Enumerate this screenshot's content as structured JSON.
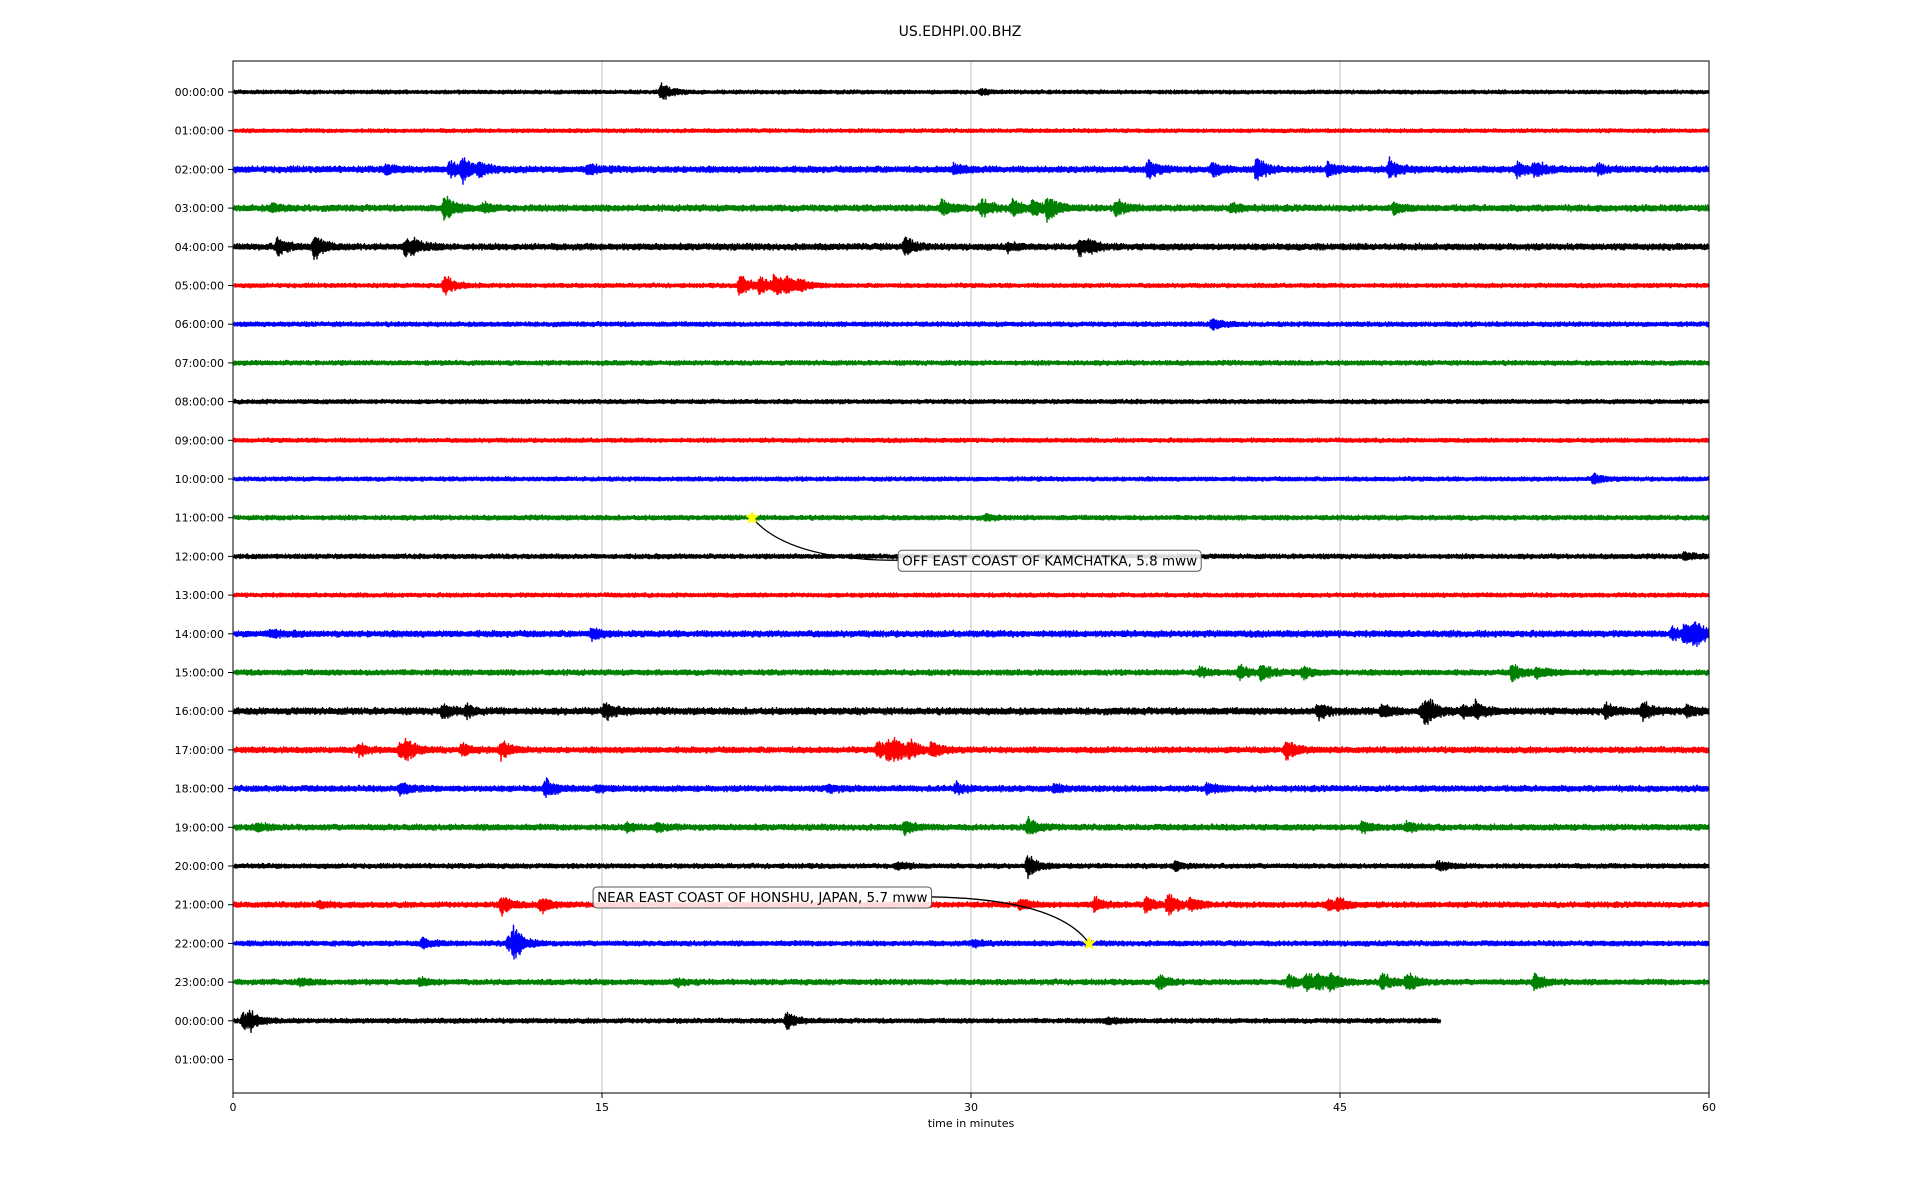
{
  "chart_data": {
    "type": "line",
    "title": "US.EDHPI.00.BHZ",
    "xlabel": "time in minutes",
    "xlim": [
      0,
      60
    ],
    "x_ticks": [
      "0",
      "15",
      "30",
      "45",
      "60"
    ],
    "grid": "vertical",
    "row_labels": [
      "00:00:00",
      "01:00:00",
      "02:00:00",
      "03:00:00",
      "04:00:00",
      "05:00:00",
      "06:00:00",
      "07:00:00",
      "08:00:00",
      "09:00:00",
      "10:00:00",
      "11:00:00",
      "12:00:00",
      "13:00:00",
      "14:00:00",
      "15:00:00",
      "16:00:00",
      "17:00:00",
      "18:00:00",
      "19:00:00",
      "20:00:00",
      "21:00:00",
      "22:00:00",
      "23:00:00",
      "00:00:00",
      "01:00:00"
    ],
    "trace_colors": [
      "#000000",
      "#ff0000",
      "#0000ff",
      "#008000"
    ],
    "series": [
      {
        "row": 0,
        "end": 60,
        "noise": 0.9,
        "events": [
          [
            17.4,
            11
          ],
          [
            30.4,
            3
          ]
        ]
      },
      {
        "row": 1,
        "end": 60,
        "noise": 0.9,
        "events": []
      },
      {
        "row": 2,
        "end": 60,
        "noise": 1.5,
        "events": [
          [
            6.2,
            5
          ],
          [
            8.8,
            8
          ],
          [
            9.3,
            14
          ],
          [
            10.0,
            7
          ],
          [
            14.4,
            6
          ],
          [
            29.3,
            6
          ],
          [
            37.2,
            11
          ],
          [
            39.8,
            7
          ],
          [
            41.6,
            13
          ],
          [
            44.5,
            9
          ],
          [
            47.0,
            12
          ],
          [
            52.2,
            7
          ],
          [
            52.9,
            9
          ],
          [
            55.5,
            5
          ]
        ]
      },
      {
        "row": 3,
        "end": 60,
        "noise": 1.5,
        "events": [
          [
            1.6,
            4
          ],
          [
            8.6,
            15
          ],
          [
            10.2,
            5
          ],
          [
            28.8,
            9
          ],
          [
            30.4,
            10
          ],
          [
            31.7,
            9
          ],
          [
            32.5,
            8
          ],
          [
            33.1,
            14
          ],
          [
            35.9,
            9
          ],
          [
            40.6,
            5
          ],
          [
            47.2,
            5
          ]
        ]
      },
      {
        "row": 4,
        "end": 60,
        "noise": 1.5,
        "events": [
          [
            1.8,
            10
          ],
          [
            3.3,
            14
          ],
          [
            7.0,
            8
          ],
          [
            7.3,
            6
          ],
          [
            27.3,
            11
          ],
          [
            31.5,
            4
          ],
          [
            34.4,
            9
          ],
          [
            34.8,
            5
          ]
        ]
      },
      {
        "row": 5,
        "end": 60,
        "noise": 1.0,
        "events": [
          [
            8.6,
            12
          ],
          [
            20.6,
            14
          ],
          [
            21.4,
            10
          ],
          [
            22.0,
            13
          ],
          [
            22.5,
            8
          ],
          [
            23.0,
            6
          ]
        ]
      },
      {
        "row": 6,
        "end": 60,
        "noise": 1.1,
        "events": [
          [
            39.8,
            7
          ]
        ]
      },
      {
        "row": 7,
        "end": 60,
        "noise": 1.1,
        "events": []
      },
      {
        "row": 8,
        "end": 60,
        "noise": 1.0,
        "events": []
      },
      {
        "row": 9,
        "end": 60,
        "noise": 1.0,
        "events": []
      },
      {
        "row": 10,
        "end": 60,
        "noise": 1.0,
        "events": [
          [
            55.3,
            6
          ]
        ]
      },
      {
        "row": 11,
        "end": 60,
        "noise": 1.1,
        "events": [
          [
            30.6,
            3
          ]
        ]
      },
      {
        "row": 12,
        "end": 60,
        "noise": 1.1,
        "events": [
          [
            59.0,
            4
          ]
        ]
      },
      {
        "row": 13,
        "end": 60,
        "noise": 1.0,
        "events": []
      },
      {
        "row": 14,
        "end": 60,
        "noise": 1.5,
        "events": [
          [
            1.5,
            4
          ],
          [
            14.6,
            6
          ],
          [
            58.5,
            7
          ],
          [
            59.0,
            15
          ],
          [
            59.4,
            12
          ]
        ]
      },
      {
        "row": 15,
        "end": 60,
        "noise": 1.3,
        "events": [
          [
            39.3,
            5
          ],
          [
            40.9,
            8
          ],
          [
            41.8,
            10
          ],
          [
            43.5,
            6
          ],
          [
            52.0,
            10
          ],
          [
            53.0,
            7
          ]
        ]
      },
      {
        "row": 16,
        "end": 60,
        "noise": 1.6,
        "events": [
          [
            8.5,
            8
          ],
          [
            9.5,
            6
          ],
          [
            15.1,
            11
          ],
          [
            44.1,
            9
          ],
          [
            46.7,
            7
          ],
          [
            48.3,
            9
          ],
          [
            48.5,
            12
          ],
          [
            50.0,
            7
          ],
          [
            50.5,
            9
          ],
          [
            55.8,
            8
          ],
          [
            57.3,
            11
          ],
          [
            59.1,
            6
          ]
        ]
      },
      {
        "row": 17,
        "end": 60,
        "noise": 1.4,
        "events": [
          [
            5.1,
            6
          ],
          [
            6.8,
            11
          ],
          [
            7.0,
            8
          ],
          [
            9.3,
            7
          ],
          [
            10.9,
            9
          ],
          [
            26.2,
            10
          ],
          [
            26.6,
            9
          ],
          [
            26.9,
            12
          ],
          [
            27.5,
            8
          ],
          [
            28.4,
            9
          ],
          [
            42.8,
            12
          ]
        ]
      },
      {
        "row": 18,
        "end": 60,
        "noise": 1.4,
        "events": [
          [
            6.8,
            7
          ],
          [
            12.7,
            10
          ],
          [
            14.8,
            4
          ],
          [
            24.2,
            4
          ],
          [
            29.4,
            5
          ],
          [
            33.4,
            4
          ],
          [
            39.6,
            6
          ]
        ]
      },
      {
        "row": 19,
        "end": 60,
        "noise": 1.4,
        "events": [
          [
            1.0,
            5
          ],
          [
            16.0,
            5
          ],
          [
            17.2,
            4
          ],
          [
            27.3,
            7
          ],
          [
            32.3,
            10
          ],
          [
            45.9,
            6
          ],
          [
            47.7,
            5
          ]
        ]
      },
      {
        "row": 20,
        "end": 60,
        "noise": 1.1,
        "events": [
          [
            27.0,
            5
          ],
          [
            32.3,
            13
          ],
          [
            38.3,
            5
          ],
          [
            49.0,
            6
          ]
        ]
      },
      {
        "row": 21,
        "end": 60,
        "noise": 1.3,
        "events": [
          [
            3.5,
            4
          ],
          [
            10.9,
            11
          ],
          [
            12.5,
            9
          ],
          [
            32.0,
            6
          ],
          [
            35.0,
            8
          ],
          [
            37.1,
            9
          ],
          [
            38.0,
            12
          ],
          [
            38.9,
            7
          ],
          [
            44.5,
            6
          ],
          [
            44.9,
            6
          ]
        ]
      },
      {
        "row": 22,
        "end": 60,
        "noise": 1.2,
        "events": [
          [
            7.7,
            6
          ],
          [
            11.2,
            10
          ],
          [
            11.4,
            15
          ],
          [
            30.1,
            4
          ]
        ]
      },
      {
        "row": 23,
        "end": 60,
        "noise": 1.3,
        "events": [
          [
            2.7,
            4
          ],
          [
            7.6,
            4
          ],
          [
            18.0,
            4
          ],
          [
            37.6,
            9
          ],
          [
            42.9,
            7
          ],
          [
            43.6,
            10
          ],
          [
            44.1,
            8
          ],
          [
            44.6,
            9
          ],
          [
            46.7,
            10
          ],
          [
            47.7,
            12
          ],
          [
            52.9,
            10
          ]
        ]
      },
      {
        "row": 24,
        "end": 49.1,
        "noise": 1.1,
        "events": [
          [
            0.4,
            10
          ],
          [
            0.7,
            8
          ],
          [
            22.5,
            10
          ],
          [
            35.5,
            4
          ]
        ]
      }
    ],
    "annotations": [
      {
        "text": "OFF EAST COAST OF KAMCHATKA, 5.8 mww",
        "x": 21.1,
        "row": 11,
        "label_x": 27.2,
        "label_row": 12.1
      },
      {
        "text": "NEAR EAST COAST OF HONSHU, JAPAN, 5.7 mww",
        "x": 34.8,
        "row": 22,
        "label_x": 14.8,
        "label_row": 20.8
      }
    ],
    "marker_color": "#ffff00"
  }
}
